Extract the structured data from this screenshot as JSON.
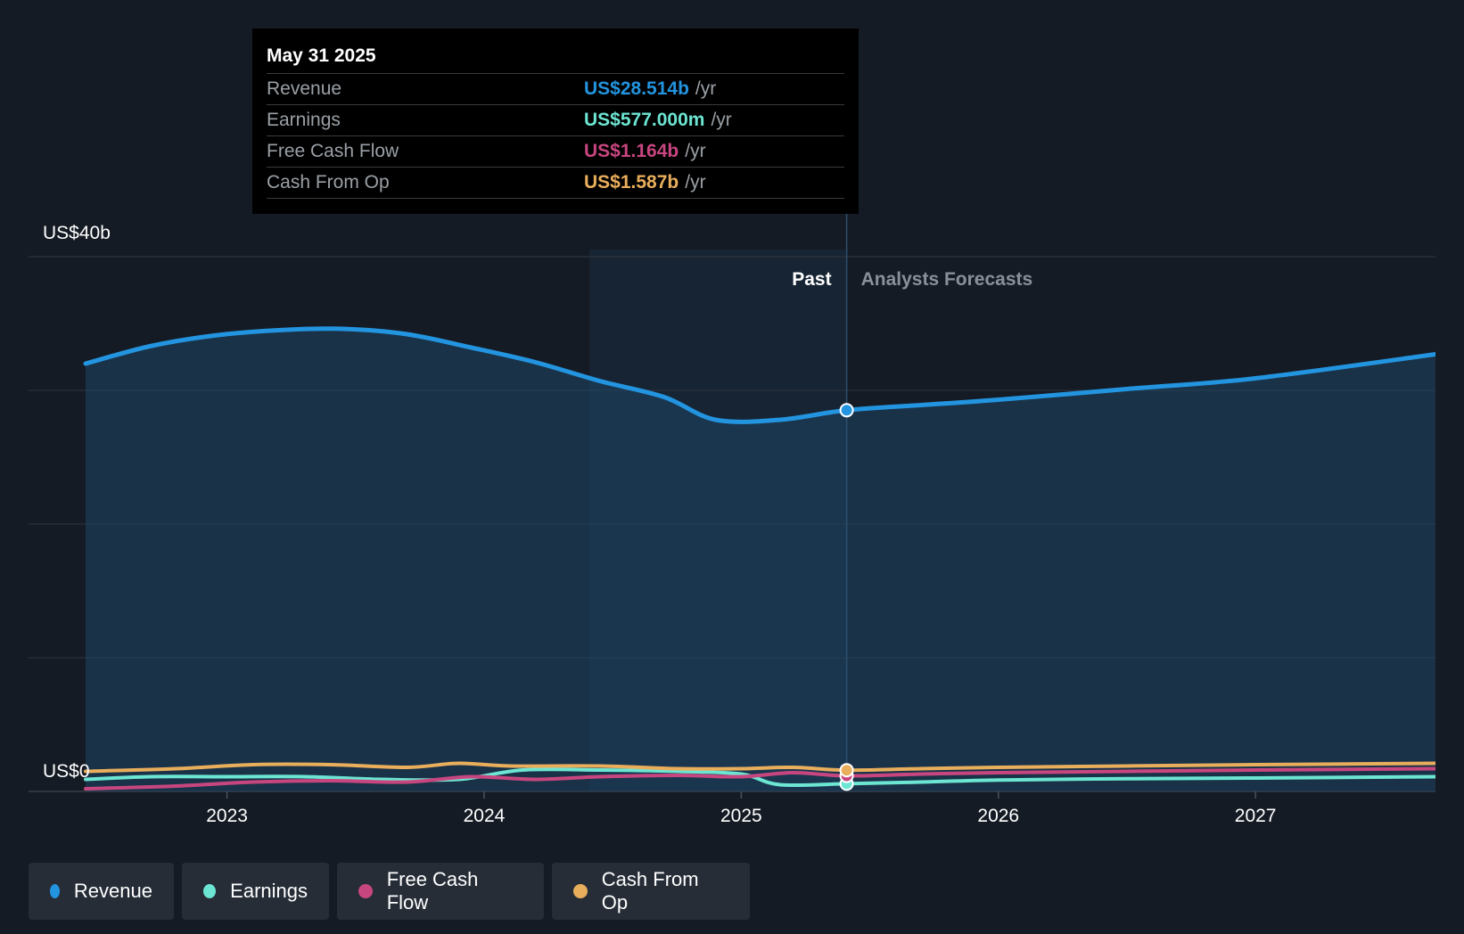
{
  "tooltip": {
    "date": "May 31 2025",
    "rows": [
      {
        "label": "Revenue",
        "value": "US$28.514b",
        "unit": "/yr",
        "color": "#2394df"
      },
      {
        "label": "Earnings",
        "value": "US$577.000m",
        "unit": "/yr",
        "color": "#6ce5d2"
      },
      {
        "label": "Free Cash Flow",
        "value": "US$1.164b",
        "unit": "/yr",
        "color": "#c8467f"
      },
      {
        "label": "Cash From Op",
        "value": "US$1.587b",
        "unit": "/yr",
        "color": "#e9ae5c"
      }
    ]
  },
  "legend": [
    {
      "label": "Revenue",
      "color": "#2394df"
    },
    {
      "label": "Earnings",
      "color": "#6ce5d2"
    },
    {
      "label": "Free Cash Flow",
      "color": "#c8467f"
    },
    {
      "label": "Cash From Op",
      "color": "#e9ae5c"
    }
  ],
  "chart_data": {
    "type": "area",
    "title": "",
    "xlabel": "",
    "ylabel": "",
    "ylim": [
      0,
      40
    ],
    "xlim": [
      2022.45,
      2027.7
    ],
    "y_tick_labels": {
      "top": "US$40b",
      "bottom": "US$0"
    },
    "x_ticks": [
      2023,
      2024,
      2025,
      2026,
      2027
    ],
    "gridlines": [
      0,
      10,
      20,
      30,
      40
    ],
    "past_label": "Past",
    "forecast_label": "Analysts Forecasts",
    "forecast_start": 2025.41,
    "highlight_start": 2024.41,
    "marker_x": 2025.41,
    "series": [
      {
        "name": "Revenue",
        "color": "#2394df",
        "x": [
          2022.45,
          2022.7,
          2022.95,
          2023.2,
          2023.45,
          2023.7,
          2023.95,
          2024.2,
          2024.45,
          2024.7,
          2024.9,
          2025.15,
          2025.41,
          2025.7,
          2026.0,
          2026.5,
          2027.0,
          2027.7
        ],
        "y": [
          32.0,
          33.3,
          34.1,
          34.5,
          34.6,
          34.2,
          33.2,
          32.1,
          30.7,
          29.5,
          27.8,
          27.8,
          28.514,
          28.9,
          29.3,
          30.1,
          30.9,
          32.7
        ]
      },
      {
        "name": "Earnings",
        "color": "#6ce5d2",
        "x": [
          2022.45,
          2022.7,
          2023.0,
          2023.3,
          2023.6,
          2023.9,
          2024.15,
          2024.45,
          2024.75,
          2025.0,
          2025.15,
          2025.41,
          2025.7,
          2026.0,
          2026.5,
          2027.0,
          2027.7
        ],
        "y": [
          0.9,
          1.1,
          1.1,
          1.1,
          0.9,
          0.9,
          1.6,
          1.6,
          1.5,
          1.3,
          0.5,
          0.577,
          0.7,
          0.85,
          0.95,
          1.0,
          1.1
        ]
      },
      {
        "name": "Free Cash Flow",
        "color": "#c8467f",
        "x": [
          2022.45,
          2022.8,
          2023.1,
          2023.4,
          2023.7,
          2023.95,
          2024.2,
          2024.45,
          2024.75,
          2025.0,
          2025.2,
          2025.41,
          2025.7,
          2026.0,
          2026.5,
          2027.0,
          2027.7
        ],
        "y": [
          0.2,
          0.4,
          0.7,
          0.8,
          0.7,
          1.1,
          0.9,
          1.1,
          1.2,
          1.1,
          1.4,
          1.164,
          1.3,
          1.4,
          1.5,
          1.6,
          1.7
        ]
      },
      {
        "name": "Cash From Op",
        "color": "#e9ae5c",
        "x": [
          2022.45,
          2022.8,
          2023.1,
          2023.4,
          2023.7,
          2023.9,
          2024.1,
          2024.45,
          2024.75,
          2025.0,
          2025.2,
          2025.41,
          2025.7,
          2026.0,
          2026.5,
          2027.0,
          2027.7
        ],
        "y": [
          1.5,
          1.7,
          2.0,
          2.0,
          1.8,
          2.1,
          1.9,
          1.9,
          1.7,
          1.7,
          1.8,
          1.587,
          1.7,
          1.8,
          1.9,
          2.0,
          2.1
        ]
      }
    ]
  }
}
